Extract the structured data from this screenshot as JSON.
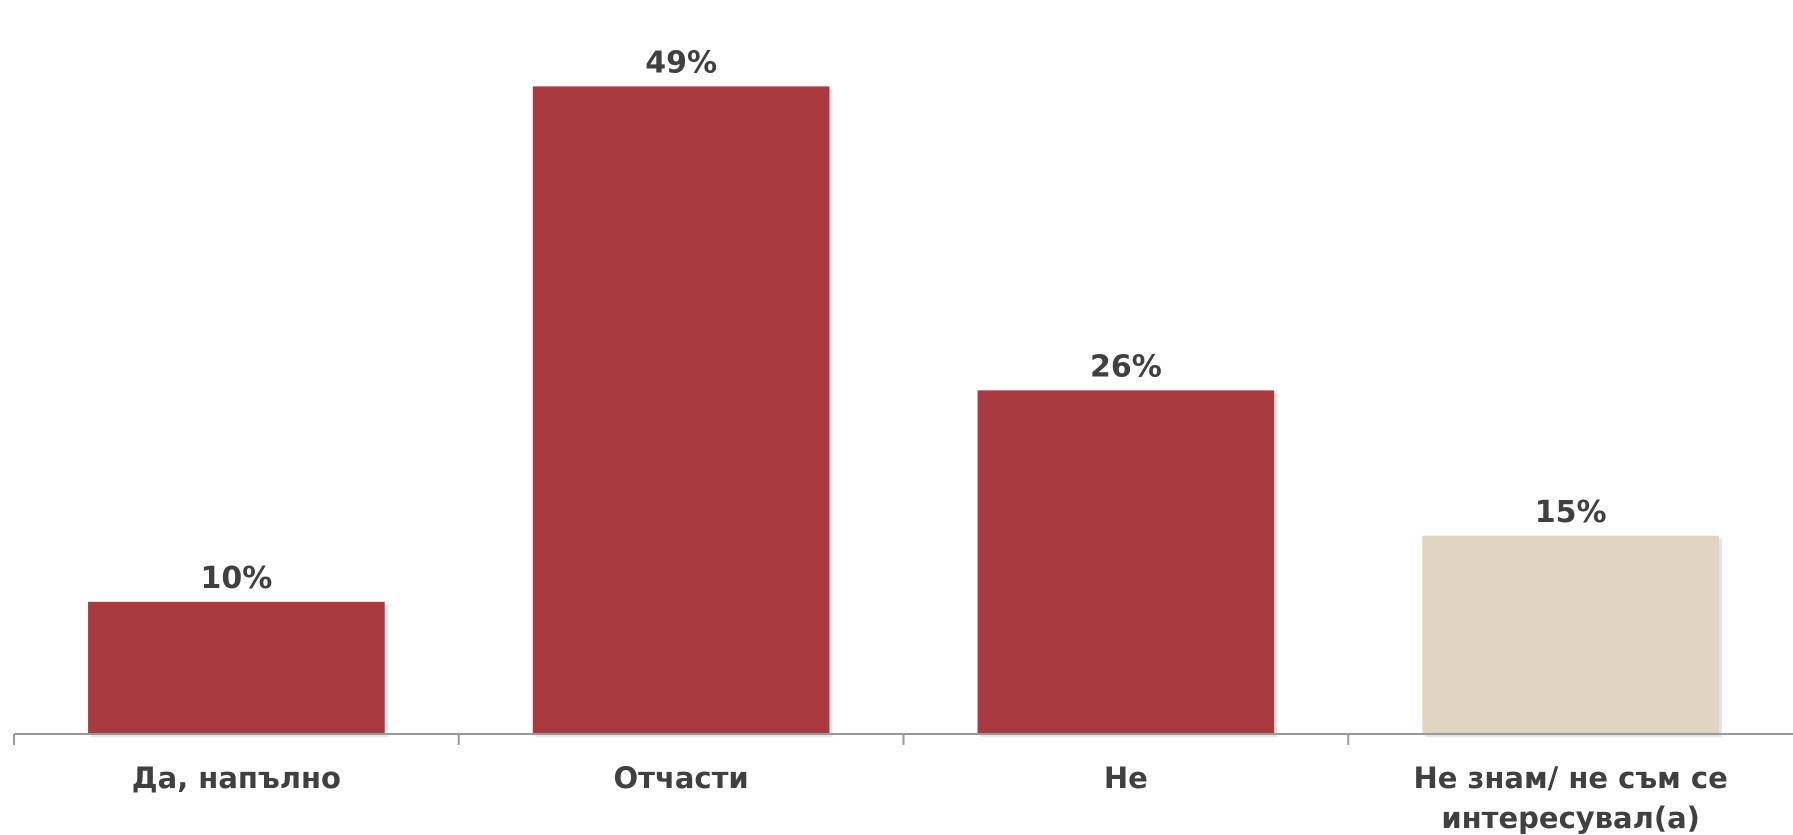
{
  "chart_data": {
    "type": "bar",
    "categories": [
      [
        "Да, напълно"
      ],
      [
        "Отчасти"
      ],
      [
        "Не"
      ],
      [
        "Не знам/ не съм се",
        "интересувал(а)"
      ]
    ],
    "values": [
      10,
      49,
      26,
      15
    ],
    "value_labels": [
      "10%",
      "49%",
      "26%",
      "15%"
    ],
    "bar_colors": [
      "#a83a40",
      "#a83a40",
      "#a83a40",
      "#e1d4c1"
    ],
    "ylim": [
      0,
      51.3
    ],
    "grid": false,
    "legend": "none",
    "title": "",
    "xlabel": "",
    "ylabel": "",
    "colors": {
      "axis": "#9a9a9a",
      "text": "#404040"
    }
  }
}
